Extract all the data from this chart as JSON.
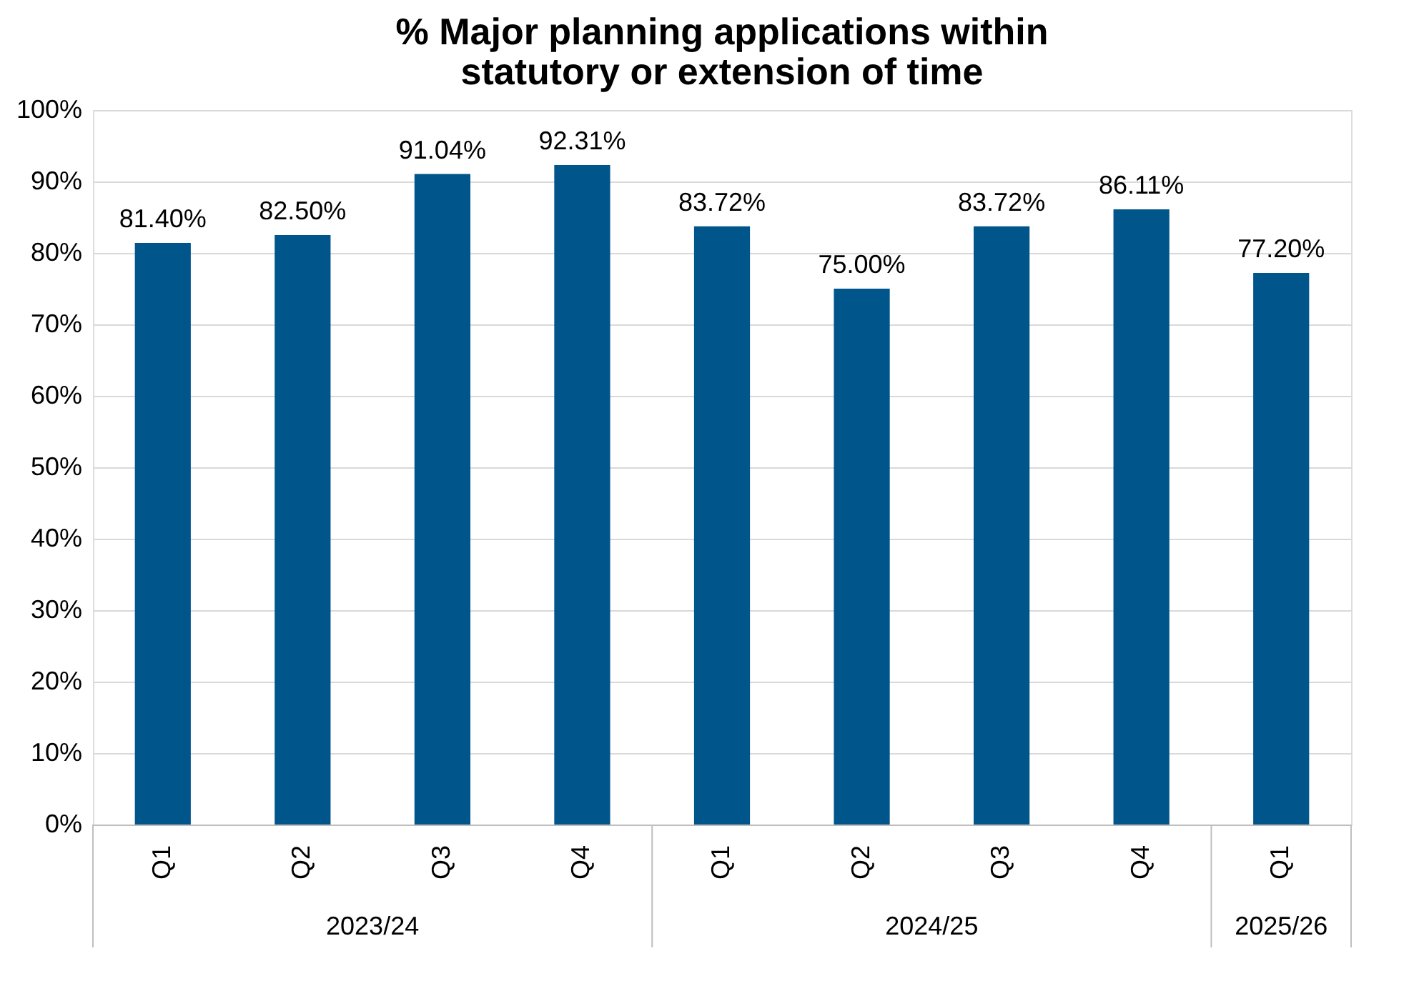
{
  "chart_data": {
    "type": "bar",
    "title": "% Major planning applications within\nstatutory or extension of time",
    "categories": [
      "Q1",
      "Q2",
      "Q3",
      "Q4",
      "Q1",
      "Q2",
      "Q3",
      "Q4",
      "Q1"
    ],
    "values": [
      81.4,
      82.5,
      91.04,
      92.31,
      83.72,
      75.0,
      83.72,
      86.11,
      77.2
    ],
    "value_labels": [
      "81.40%",
      "82.50%",
      "91.04%",
      "92.31%",
      "83.72%",
      "75.00%",
      "83.72%",
      "86.11%",
      "77.20%"
    ],
    "color": "#00558b",
    "annotations": [
      "2023/24",
      "2024/25",
      "2025/26"
    ],
    "ylim": [
      0,
      100
    ],
    "yticks": [
      {
        "value": 0,
        "label": "0%"
      },
      {
        "value": 10,
        "label": "10%"
      },
      {
        "value": 20,
        "label": "20%"
      },
      {
        "value": 30,
        "label": "30%"
      },
      {
        "value": 40,
        "label": "40%"
      },
      {
        "value": 50,
        "label": "50%"
      },
      {
        "value": 60,
        "label": "60%"
      },
      {
        "value": 70,
        "label": "70%"
      },
      {
        "value": 80,
        "label": "80%"
      },
      {
        "value": 90,
        "label": "90%"
      },
      {
        "value": 100,
        "label": "100%"
      }
    ],
    "grid": "y"
  }
}
